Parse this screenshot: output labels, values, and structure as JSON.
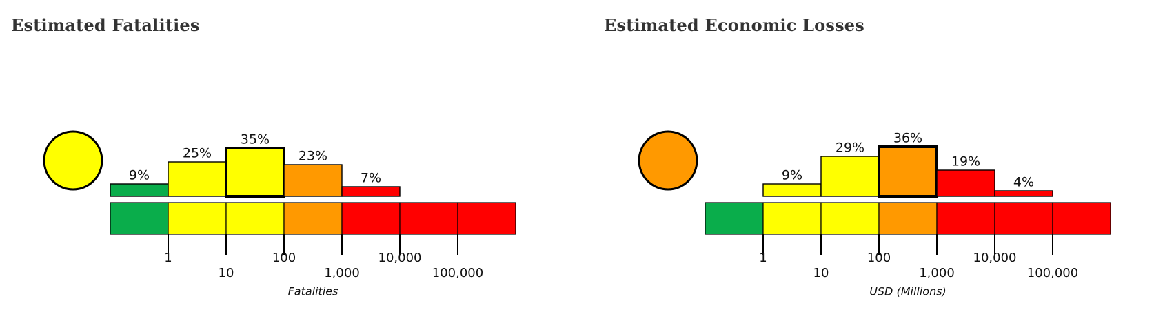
{
  "panels": {
    "fatalities": {
      "title": "Estimated Fatalities"
    },
    "economic": {
      "title": "Estimated Economic Losses"
    }
  },
  "colors": {
    "green": "#0aad4b",
    "yellow": "#ffff00",
    "orange": "#ff9900",
    "red": "#ff0000",
    "outline": "#000000",
    "title_text": "#333333"
  },
  "chart_data": [
    {
      "type": "bar",
      "title": "Estimated Fatalities",
      "xlabel": "Fatalities",
      "ylabel": "",
      "x_scale": "log",
      "categories": [
        "0-1",
        "1-10",
        "10-100",
        "100-1,000",
        "1,000-10,000",
        "10,000-100,000",
        "100,000+"
      ],
      "values": [
        9,
        25,
        35,
        23,
        7,
        0,
        0
      ],
      "value_labels": [
        "9%",
        "25%",
        "35%",
        "23%",
        "7%",
        "",
        ""
      ],
      "bar_colors": [
        "green",
        "yellow",
        "yellow",
        "orange",
        "red",
        "red",
        "red"
      ],
      "scale_colors": [
        "green",
        "yellow",
        "yellow",
        "orange",
        "red",
        "red",
        "red"
      ],
      "highlighted_index": 2,
      "alert_level": "yellow",
      "ticks": [
        "1",
        "10",
        "100",
        "1,000",
        "10,000",
        "100,000"
      ],
      "ylim": [
        0,
        100
      ]
    },
    {
      "type": "bar",
      "title": "Estimated Economic Losses",
      "xlabel": "USD (Millions)",
      "ylabel": "",
      "x_scale": "log",
      "categories": [
        "0-1",
        "1-10",
        "10-100",
        "100-1,000",
        "1,000-10,000",
        "10,000-100,000",
        "100,000+"
      ],
      "values": [
        0,
        9,
        29,
        36,
        19,
        4,
        0
      ],
      "value_labels": [
        "",
        "9%",
        "29%",
        "36%",
        "19%",
        "4%",
        ""
      ],
      "bar_colors": [
        "green",
        "yellow",
        "yellow",
        "orange",
        "red",
        "red",
        "red"
      ],
      "scale_colors": [
        "green",
        "yellow",
        "yellow",
        "orange",
        "red",
        "red",
        "red"
      ],
      "highlighted_index": 3,
      "alert_level": "orange",
      "ticks": [
        "1",
        "10",
        "100",
        "1,000",
        "10,000",
        "100,000"
      ],
      "ylim": [
        0,
        100
      ]
    }
  ]
}
